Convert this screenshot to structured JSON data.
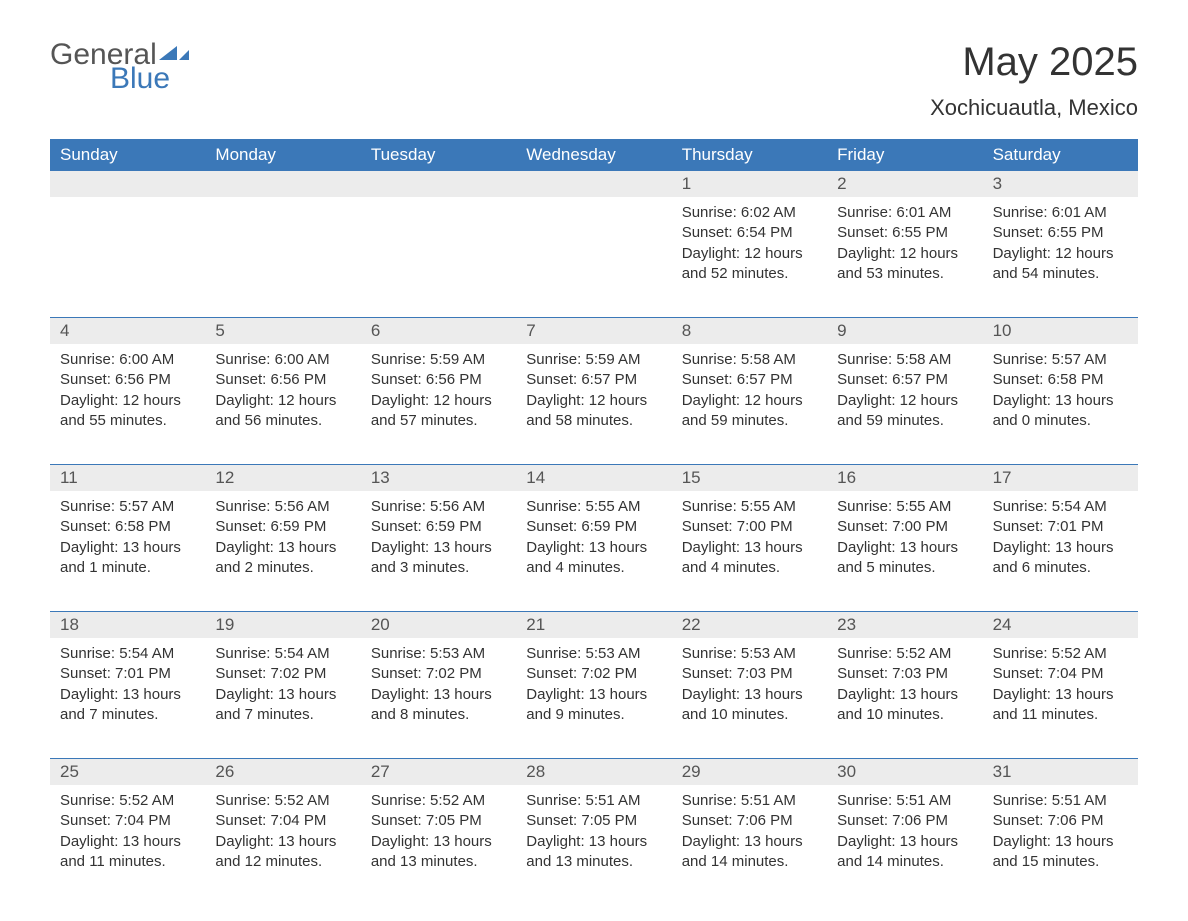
{
  "logo": {
    "general": "General",
    "blue": "Blue",
    "flag_color": "#3b78b8"
  },
  "title": "May 2025",
  "subtitle": "Xochicuautla, Mexico",
  "colors": {
    "header_bg": "#3b78b8",
    "header_text": "#ffffff",
    "daynum_bg": "#ececec",
    "border": "#3b78b8",
    "text": "#333333"
  },
  "weekdays": [
    "Sunday",
    "Monday",
    "Tuesday",
    "Wednesday",
    "Thursday",
    "Friday",
    "Saturday"
  ],
  "weeks": [
    {
      "nums": [
        "",
        "",
        "",
        "",
        "1",
        "2",
        "3"
      ],
      "cells": [
        null,
        null,
        null,
        null,
        {
          "sunrise": "Sunrise: 6:02 AM",
          "sunset": "Sunset: 6:54 PM",
          "day1": "Daylight: 12 hours",
          "day2": "and 52 minutes."
        },
        {
          "sunrise": "Sunrise: 6:01 AM",
          "sunset": "Sunset: 6:55 PM",
          "day1": "Daylight: 12 hours",
          "day2": "and 53 minutes."
        },
        {
          "sunrise": "Sunrise: 6:01 AM",
          "sunset": "Sunset: 6:55 PM",
          "day1": "Daylight: 12 hours",
          "day2": "and 54 minutes."
        }
      ]
    },
    {
      "nums": [
        "4",
        "5",
        "6",
        "7",
        "8",
        "9",
        "10"
      ],
      "cells": [
        {
          "sunrise": "Sunrise: 6:00 AM",
          "sunset": "Sunset: 6:56 PM",
          "day1": "Daylight: 12 hours",
          "day2": "and 55 minutes."
        },
        {
          "sunrise": "Sunrise: 6:00 AM",
          "sunset": "Sunset: 6:56 PM",
          "day1": "Daylight: 12 hours",
          "day2": "and 56 minutes."
        },
        {
          "sunrise": "Sunrise: 5:59 AM",
          "sunset": "Sunset: 6:56 PM",
          "day1": "Daylight: 12 hours",
          "day2": "and 57 minutes."
        },
        {
          "sunrise": "Sunrise: 5:59 AM",
          "sunset": "Sunset: 6:57 PM",
          "day1": "Daylight: 12 hours",
          "day2": "and 58 minutes."
        },
        {
          "sunrise": "Sunrise: 5:58 AM",
          "sunset": "Sunset: 6:57 PM",
          "day1": "Daylight: 12 hours",
          "day2": "and 59 minutes."
        },
        {
          "sunrise": "Sunrise: 5:58 AM",
          "sunset": "Sunset: 6:57 PM",
          "day1": "Daylight: 12 hours",
          "day2": "and 59 minutes."
        },
        {
          "sunrise": "Sunrise: 5:57 AM",
          "sunset": "Sunset: 6:58 PM",
          "day1": "Daylight: 13 hours",
          "day2": "and 0 minutes."
        }
      ]
    },
    {
      "nums": [
        "11",
        "12",
        "13",
        "14",
        "15",
        "16",
        "17"
      ],
      "cells": [
        {
          "sunrise": "Sunrise: 5:57 AM",
          "sunset": "Sunset: 6:58 PM",
          "day1": "Daylight: 13 hours",
          "day2": "and 1 minute."
        },
        {
          "sunrise": "Sunrise: 5:56 AM",
          "sunset": "Sunset: 6:59 PM",
          "day1": "Daylight: 13 hours",
          "day2": "and 2 minutes."
        },
        {
          "sunrise": "Sunrise: 5:56 AM",
          "sunset": "Sunset: 6:59 PM",
          "day1": "Daylight: 13 hours",
          "day2": "and 3 minutes."
        },
        {
          "sunrise": "Sunrise: 5:55 AM",
          "sunset": "Sunset: 6:59 PM",
          "day1": "Daylight: 13 hours",
          "day2": "and 4 minutes."
        },
        {
          "sunrise": "Sunrise: 5:55 AM",
          "sunset": "Sunset: 7:00 PM",
          "day1": "Daylight: 13 hours",
          "day2": "and 4 minutes."
        },
        {
          "sunrise": "Sunrise: 5:55 AM",
          "sunset": "Sunset: 7:00 PM",
          "day1": "Daylight: 13 hours",
          "day2": "and 5 minutes."
        },
        {
          "sunrise": "Sunrise: 5:54 AM",
          "sunset": "Sunset: 7:01 PM",
          "day1": "Daylight: 13 hours",
          "day2": "and 6 minutes."
        }
      ]
    },
    {
      "nums": [
        "18",
        "19",
        "20",
        "21",
        "22",
        "23",
        "24"
      ],
      "cells": [
        {
          "sunrise": "Sunrise: 5:54 AM",
          "sunset": "Sunset: 7:01 PM",
          "day1": "Daylight: 13 hours",
          "day2": "and 7 minutes."
        },
        {
          "sunrise": "Sunrise: 5:54 AM",
          "sunset": "Sunset: 7:02 PM",
          "day1": "Daylight: 13 hours",
          "day2": "and 7 minutes."
        },
        {
          "sunrise": "Sunrise: 5:53 AM",
          "sunset": "Sunset: 7:02 PM",
          "day1": "Daylight: 13 hours",
          "day2": "and 8 minutes."
        },
        {
          "sunrise": "Sunrise: 5:53 AM",
          "sunset": "Sunset: 7:02 PM",
          "day1": "Daylight: 13 hours",
          "day2": "and 9 minutes."
        },
        {
          "sunrise": "Sunrise: 5:53 AM",
          "sunset": "Sunset: 7:03 PM",
          "day1": "Daylight: 13 hours",
          "day2": "and 10 minutes."
        },
        {
          "sunrise": "Sunrise: 5:52 AM",
          "sunset": "Sunset: 7:03 PM",
          "day1": "Daylight: 13 hours",
          "day2": "and 10 minutes."
        },
        {
          "sunrise": "Sunrise: 5:52 AM",
          "sunset": "Sunset: 7:04 PM",
          "day1": "Daylight: 13 hours",
          "day2": "and 11 minutes."
        }
      ]
    },
    {
      "nums": [
        "25",
        "26",
        "27",
        "28",
        "29",
        "30",
        "31"
      ],
      "cells": [
        {
          "sunrise": "Sunrise: 5:52 AM",
          "sunset": "Sunset: 7:04 PM",
          "day1": "Daylight: 13 hours",
          "day2": "and 11 minutes."
        },
        {
          "sunrise": "Sunrise: 5:52 AM",
          "sunset": "Sunset: 7:04 PM",
          "day1": "Daylight: 13 hours",
          "day2": "and 12 minutes."
        },
        {
          "sunrise": "Sunrise: 5:52 AM",
          "sunset": "Sunset: 7:05 PM",
          "day1": "Daylight: 13 hours",
          "day2": "and 13 minutes."
        },
        {
          "sunrise": "Sunrise: 5:51 AM",
          "sunset": "Sunset: 7:05 PM",
          "day1": "Daylight: 13 hours",
          "day2": "and 13 minutes."
        },
        {
          "sunrise": "Sunrise: 5:51 AM",
          "sunset": "Sunset: 7:06 PM",
          "day1": "Daylight: 13 hours",
          "day2": "and 14 minutes."
        },
        {
          "sunrise": "Sunrise: 5:51 AM",
          "sunset": "Sunset: 7:06 PM",
          "day1": "Daylight: 13 hours",
          "day2": "and 14 minutes."
        },
        {
          "sunrise": "Sunrise: 5:51 AM",
          "sunset": "Sunset: 7:06 PM",
          "day1": "Daylight: 13 hours",
          "day2": "and 15 minutes."
        }
      ]
    }
  ]
}
